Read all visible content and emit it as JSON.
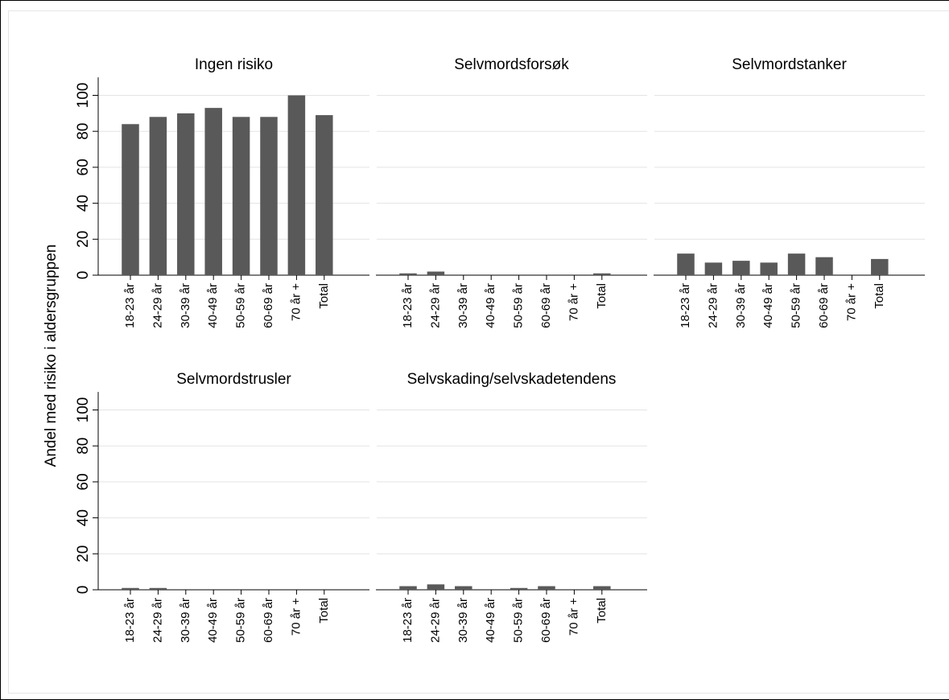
{
  "chart_data": {
    "type": "bar",
    "ylabel": "Andel med risiko i aldersgruppen",
    "ylim": [
      0,
      110
    ],
    "yticks": [
      "0",
      "20",
      "40",
      "60",
      "80",
      "100"
    ],
    "categories": [
      "18-23 år",
      "24-29 år",
      "30-39 år",
      "40-49 år",
      "50-59 år",
      "60-69 år",
      "70 år +",
      "Total"
    ],
    "grid": true,
    "bar_color": "#595959",
    "panels": [
      {
        "title": "Ingen risiko",
        "values": [
          84,
          88,
          90,
          93,
          88,
          88,
          100,
          89
        ]
      },
      {
        "title": "Selvmordsforsøk",
        "values": [
          1,
          2,
          0,
          0,
          0,
          0,
          0,
          1
        ]
      },
      {
        "title": "Selvmordstanker",
        "values": [
          12,
          7,
          8,
          7,
          12,
          10,
          0,
          9
        ]
      },
      {
        "title": "Selvmordstrusler",
        "values": [
          1,
          1,
          0,
          0,
          0,
          0,
          0,
          0
        ]
      },
      {
        "title": "Selvskading/selvskadetendens",
        "values": [
          2,
          3,
          2,
          0,
          1,
          2,
          0,
          2
        ]
      }
    ]
  }
}
